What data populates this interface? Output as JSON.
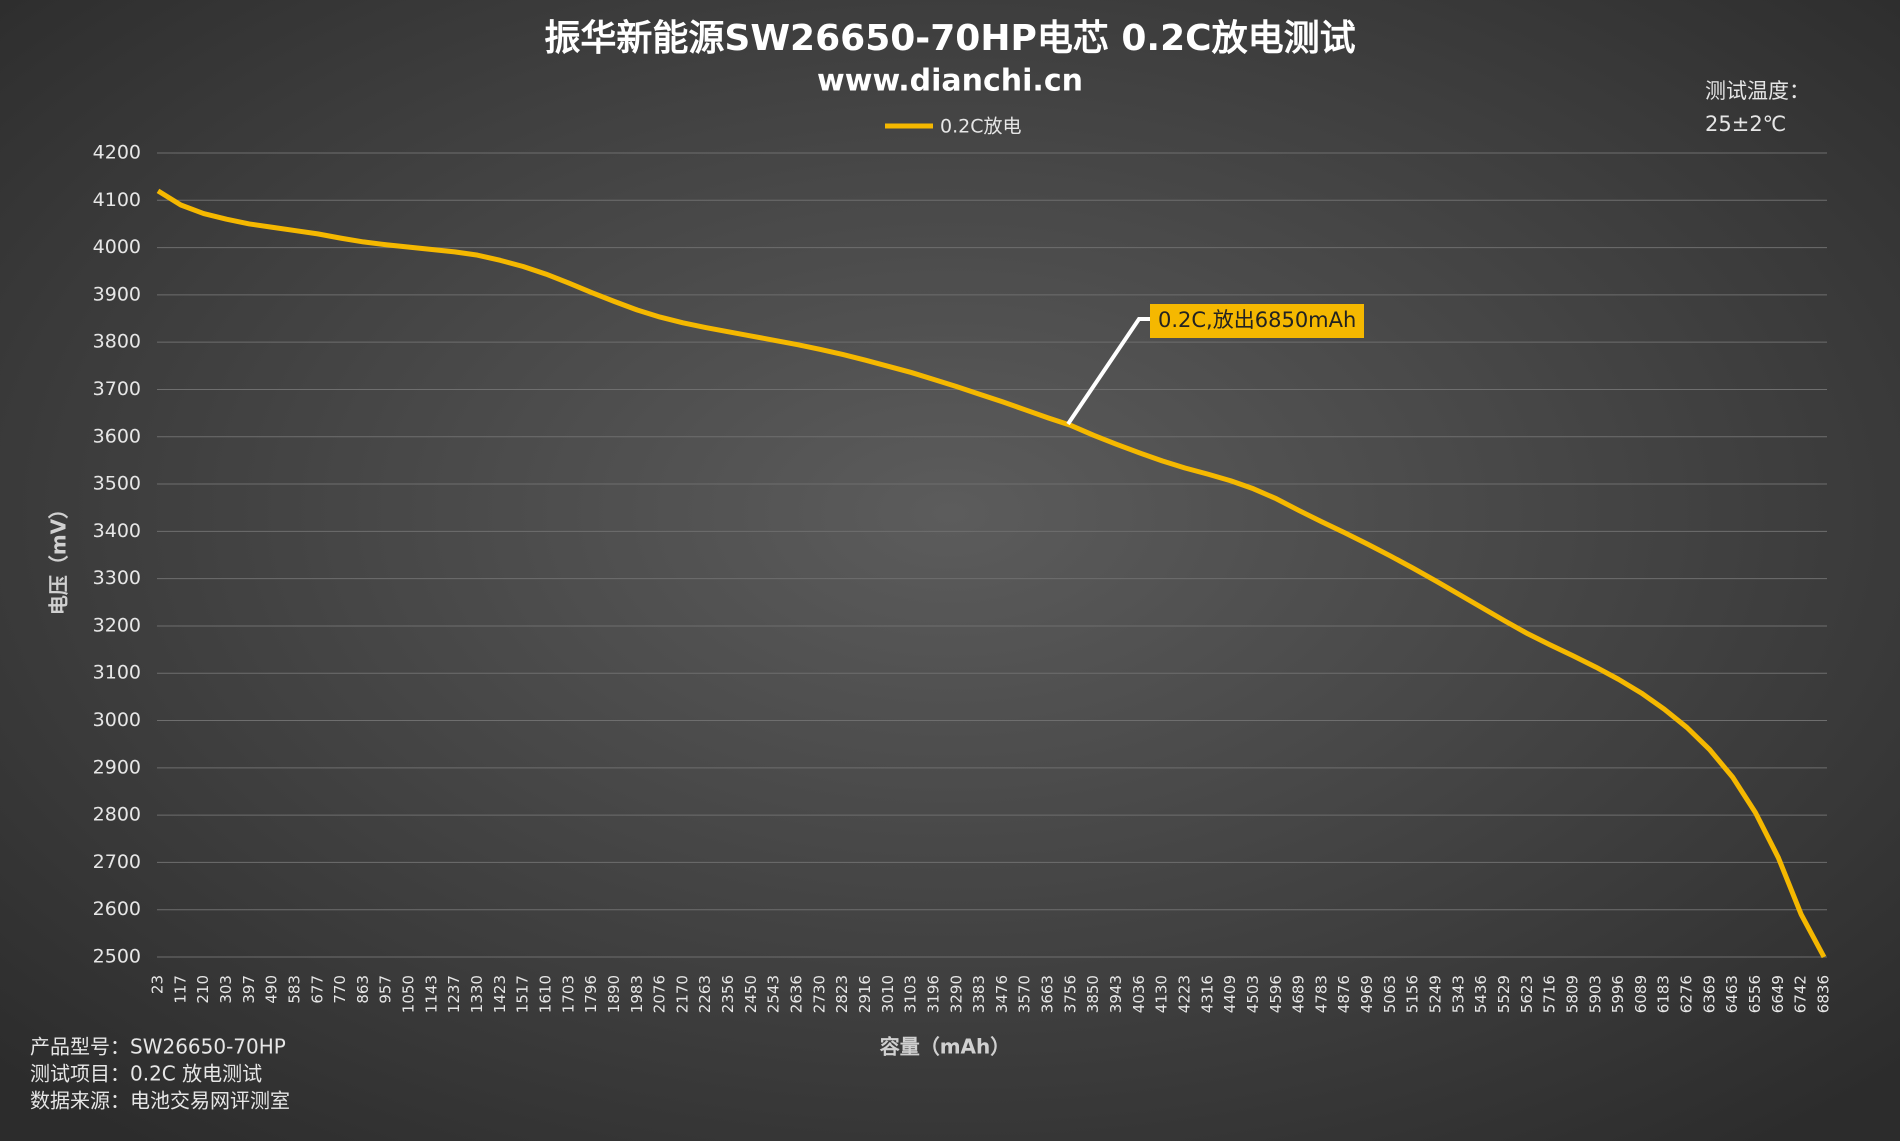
{
  "chart_data": {
    "type": "line",
    "title": "振华新能源SW26650-70HP电芯 0.2C放电测试",
    "subtitle": "www.dianchi.cn",
    "temperature_label": "测试温度：",
    "temperature_value": "25±2℃",
    "annotation": "0.2C,放出6850mAh",
    "y_label": "电压（mV）",
    "x_label": "容量（mAh）",
    "footer": [
      "产品型号：SW26650-70HP",
      "测试项目：0.2C 放电测试",
      "数据来源：电池交易网评测室"
    ],
    "categories": [
      "23",
      "117",
      "210",
      "303",
      "397",
      "490",
      "583",
      "677",
      "770",
      "863",
      "957",
      "1050",
      "1143",
      "1237",
      "1330",
      "1423",
      "1517",
      "1610",
      "1703",
      "1796",
      "1890",
      "1983",
      "2076",
      "2170",
      "2263",
      "2356",
      "2450",
      "2543",
      "2636",
      "2730",
      "2823",
      "2916",
      "3010",
      "3103",
      "3196",
      "3290",
      "3383",
      "3476",
      "3570",
      "3663",
      "3756",
      "3850",
      "3943",
      "4036",
      "4130",
      "4223",
      "4316",
      "4409",
      "4503",
      "4596",
      "4689",
      "4783",
      "4876",
      "4969",
      "5063",
      "5156",
      "5249",
      "5343",
      "5436",
      "5529",
      "5623",
      "5716",
      "5809",
      "5903",
      "5996",
      "6089",
      "6183",
      "6276",
      "6369",
      "6463",
      "6556",
      "6649",
      "6742",
      "6836"
    ],
    "series": [
      {
        "name": "0.2C放电",
        "color": "#f5b800",
        "values": [
          4120,
          4090,
          4072,
          4060,
          4050,
          4043,
          4036,
          4029,
          4020,
          4012,
          4006,
          4001,
          3996,
          3991,
          3984,
          3973,
          3960,
          3944,
          3925,
          3905,
          3886,
          3868,
          3853,
          3841,
          3831,
          3822,
          3813,
          3804,
          3795,
          3785,
          3774,
          3762,
          3749,
          3736,
          3721,
          3706,
          3690,
          3674,
          3657,
          3640,
          3624,
          3603,
          3584,
          3566,
          3549,
          3534,
          3521,
          3507,
          3490,
          3469,
          3444,
          3420,
          3397,
          3373,
          3348,
          3322,
          3295,
          3267,
          3239,
          3211,
          3184,
          3160,
          3137,
          3113,
          3087,
          3058,
          3024,
          2985,
          2938,
          2880,
          2805,
          2710,
          2590,
          2500
        ]
      }
    ],
    "ylim": [
      2500,
      4200
    ],
    "yticks": [
      2500,
      2600,
      2700,
      2800,
      2900,
      3000,
      3100,
      3200,
      3300,
      3400,
      3500,
      3600,
      3700,
      3800,
      3900,
      4000,
      4100,
      4200
    ],
    "grid": true
  }
}
